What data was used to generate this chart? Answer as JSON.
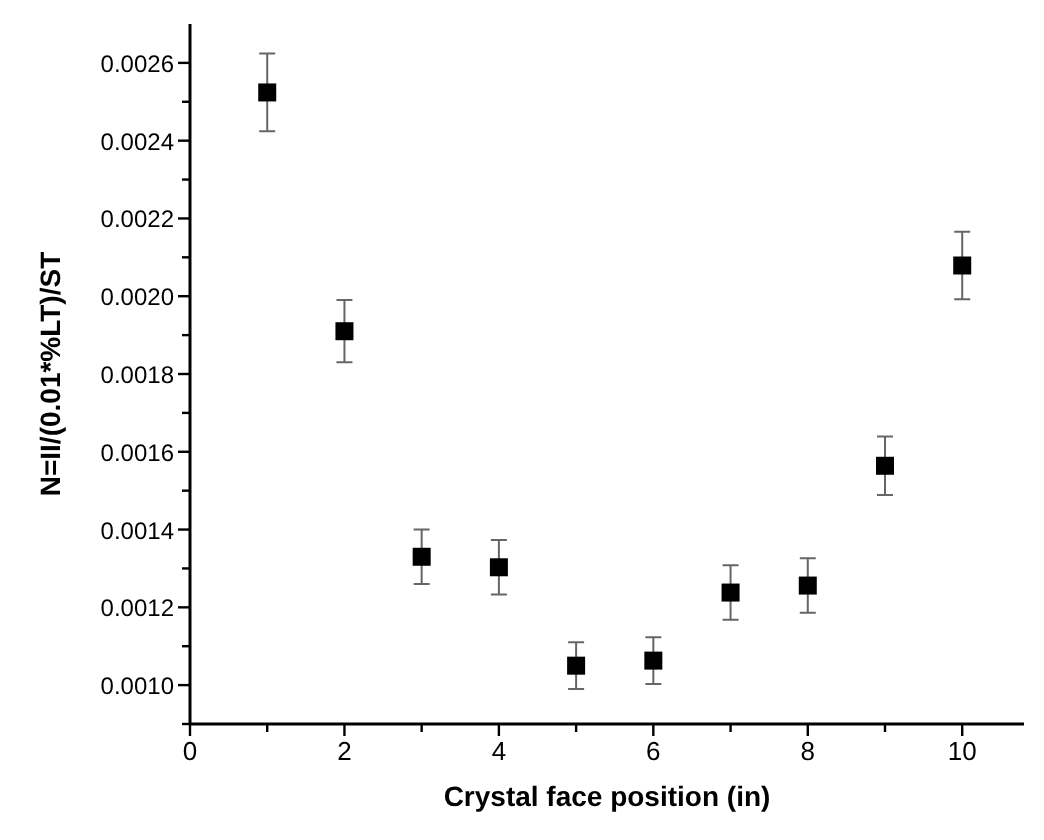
{
  "chart_data": {
    "type": "scatter",
    "xlabel": "Crystal face position (in)",
    "ylabel": "N=II/(0.01*%LT)/ST",
    "x": [
      1,
      2,
      3,
      4,
      5,
      6,
      7,
      8,
      9,
      10
    ],
    "values": [
      0.002524,
      0.00191,
      0.00133,
      0.001303,
      0.00105,
      0.001063,
      0.001238,
      0.001256,
      0.001564,
      0.002079
    ],
    "errors": [
      0.0001,
      8e-05,
      7e-05,
      7e-05,
      6e-05,
      6e-05,
      7e-05,
      7e-05,
      7.5e-05,
      8.7e-05
    ],
    "color": "#000000",
    "marker": "square",
    "grid": false,
    "xlim": [
      0,
      10.8
    ],
    "xticks": [
      0,
      {
        "value": 1,
        "label": null
      },
      2,
      {
        "value": 3,
        "label": null
      },
      4,
      {
        "value": 5,
        "label": null
      },
      6,
      {
        "value": 7,
        "label": null
      },
      8,
      {
        "value": 9,
        "label": null
      },
      10
    ],
    "ylim": [
      0.0009,
      0.0027
    ],
    "yticks": [
      {
        "value": 0.0009,
        "label": null
      },
      {
        "value": 0.001,
        "label": "0.0010"
      },
      {
        "value": 0.0011,
        "label": null
      },
      {
        "value": 0.0012,
        "label": "0.0012"
      },
      {
        "value": 0.0013,
        "label": null
      },
      {
        "value": 0.0014,
        "label": "0.0014"
      },
      {
        "value": 0.0015,
        "label": null
      },
      {
        "value": 0.0016,
        "label": "0.0016"
      },
      {
        "value": 0.0017,
        "label": null
      },
      {
        "value": 0.0018,
        "label": "0.0018"
      },
      {
        "value": 0.0019,
        "label": null
      },
      {
        "value": 0.002,
        "label": "0.0020"
      },
      {
        "value": 0.0021,
        "label": null
      },
      {
        "value": 0.0022,
        "label": "0.0022"
      },
      {
        "value": 0.0023,
        "label": null
      },
      {
        "value": 0.0024,
        "label": "0.0024"
      },
      {
        "value": 0.0025,
        "label": null
      },
      {
        "value": 0.0026,
        "label": "0.0026"
      }
    ]
  }
}
